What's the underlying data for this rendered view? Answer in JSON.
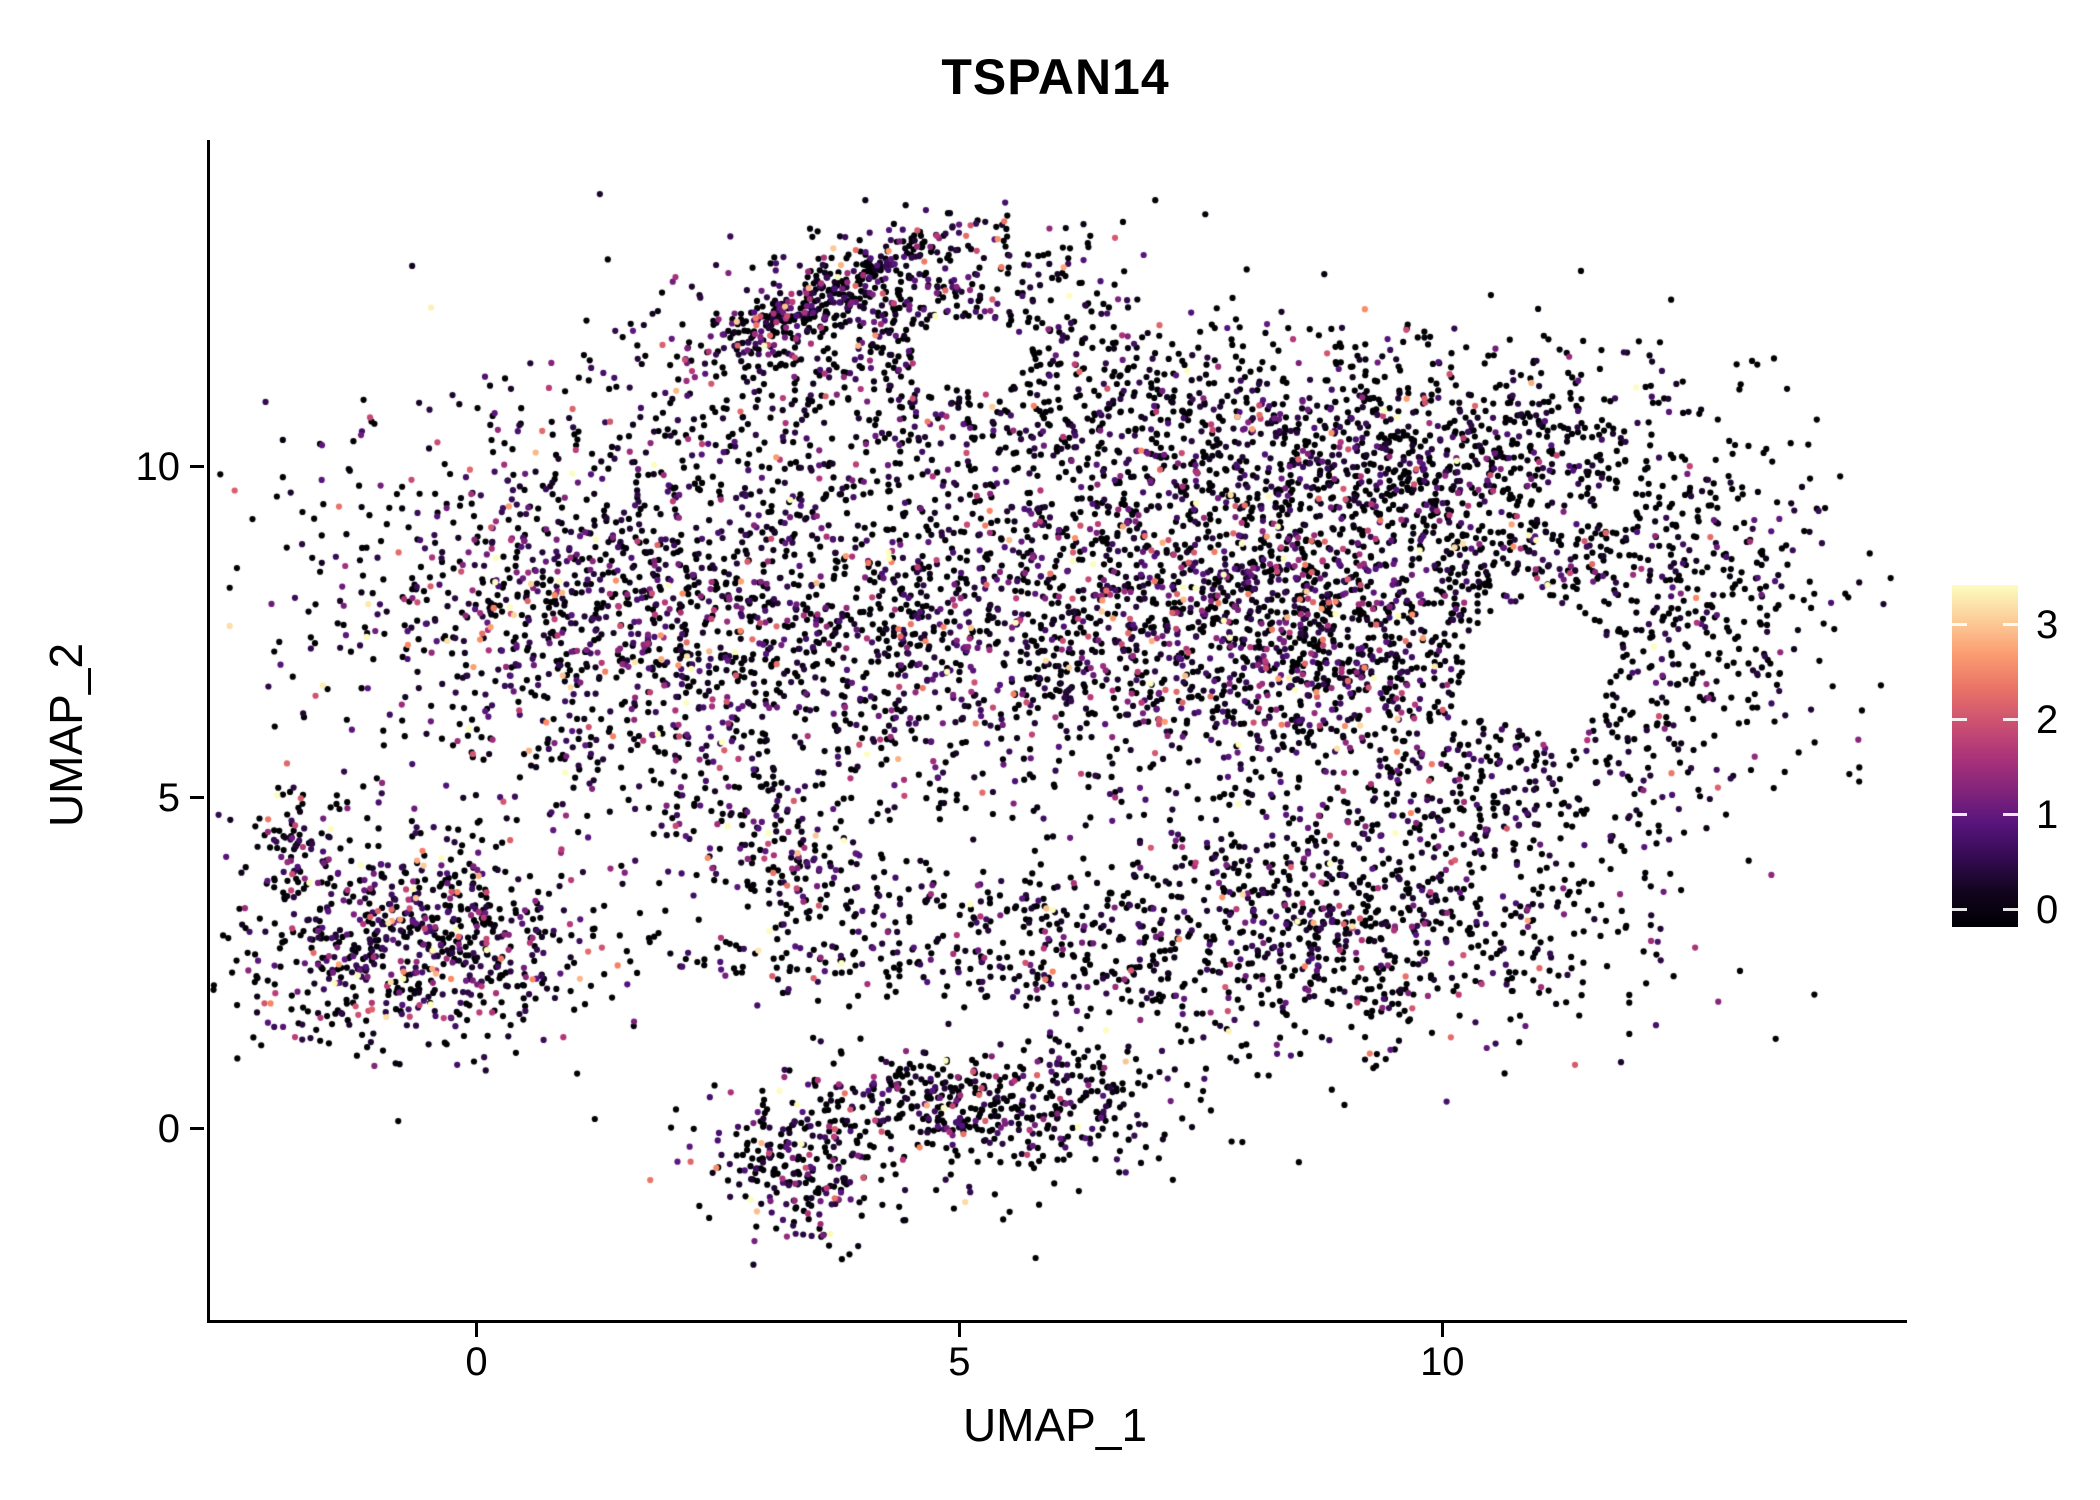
{
  "chart_data": {
    "type": "scatter",
    "title": "TSPAN14",
    "xlabel": "UMAP_1",
    "ylabel": "UMAP_2",
    "xlim": [
      -2.79,
      14.78
    ],
    "ylim": [
      -2.89,
      14.94
    ],
    "xticks": [
      0,
      5,
      10
    ],
    "yticks": [
      0,
      5,
      10
    ],
    "grid": false,
    "legend_position": "right",
    "point_radius_px": 3.1,
    "seed": 11,
    "total_points": 10080,
    "expression_range": [
      0,
      3.4
    ],
    "colorbar": {
      "min": -0.18,
      "max": 3.42,
      "ticks": [
        0,
        1,
        2,
        3
      ],
      "stops": [
        [
          0,
          "#000004"
        ],
        [
          0.25,
          "#51127c"
        ],
        [
          0.5,
          "#b73779"
        ],
        [
          0.75,
          "#fb8861"
        ],
        [
          1,
          "#fcfdbf"
        ]
      ]
    },
    "clusters": [
      {
        "name": "top-arm-edge",
        "cx": 3.55,
        "cy": 12.55,
        "sx": 0.85,
        "sy": 0.16,
        "rot": 37,
        "n": 300,
        "p0": 0.45,
        "emean": 0.8
      },
      {
        "name": "top-arm-fill",
        "cx": 4.5,
        "cy": 12.3,
        "sx": 1.25,
        "sy": 0.65,
        "rot": 10,
        "n": 550,
        "p0": 0.52,
        "emean": 0.7
      },
      {
        "name": "upper-band",
        "cx": 6.5,
        "cy": 10.8,
        "sx": 2.2,
        "sy": 0.75,
        "rot": 0,
        "n": 600,
        "p0": 0.55,
        "emean": 0.7
      },
      {
        "name": "upper-right",
        "cx": 9.5,
        "cy": 10.3,
        "sx": 1.4,
        "sy": 0.9,
        "rot": 0,
        "n": 500,
        "p0": 0.55,
        "emean": 0.7
      },
      {
        "name": "left-mass",
        "cx": 1.3,
        "cy": 7.9,
        "sx": 1.45,
        "sy": 1.55,
        "rot": 0,
        "n": 1300,
        "p0": 0.42,
        "emean": 0.85
      },
      {
        "name": "mid-mass",
        "cx": 4.8,
        "cy": 7.7,
        "sx": 1.7,
        "sy": 1.5,
        "rot": 0,
        "n": 1100,
        "p0": 0.5,
        "emean": 0.75
      },
      {
        "name": "right-dense",
        "cx": 8.2,
        "cy": 7.9,
        "sx": 1.5,
        "sy": 1.3,
        "rot": 0,
        "n": 1500,
        "p0": 0.38,
        "emean": 0.9
      },
      {
        "name": "right-sparse",
        "cx": 10.8,
        "cy": 8.8,
        "sx": 1.3,
        "sy": 1.4,
        "rot": 0,
        "n": 550,
        "p0": 0.68,
        "emean": 0.6
      },
      {
        "name": "far-right",
        "cx": 12.6,
        "cy": 7.8,
        "sx": 0.8,
        "sy": 1.6,
        "rot": 0,
        "n": 300,
        "p0": 0.72,
        "emean": 0.5
      },
      {
        "name": "right-mid-low",
        "cx": 10.3,
        "cy": 5.6,
        "sx": 1.3,
        "sy": 0.9,
        "rot": 0,
        "n": 350,
        "p0": 0.6,
        "emean": 0.6
      },
      {
        "name": "bottom-right-lobe",
        "cx": 8.9,
        "cy": 3.1,
        "sx": 1.6,
        "sy": 1.0,
        "rot": 0,
        "n": 900,
        "p0": 0.55,
        "emean": 0.75
      },
      {
        "name": "mid-strand-lower",
        "cx": 4.7,
        "cy": 2.45,
        "sx": 2.2,
        "sy": 0.22,
        "rot": -3,
        "n": 220,
        "p0": 0.5,
        "emean": 0.8
      },
      {
        "name": "mid-strand-upper",
        "cx": 5.3,
        "cy": 3.3,
        "sx": 1.6,
        "sy": 0.28,
        "rot": -5,
        "n": 160,
        "p0": 0.5,
        "emean": 0.8
      },
      {
        "name": "left-diag-strand",
        "cx": 3.1,
        "cy": 4.3,
        "sx": 0.45,
        "sy": 0.85,
        "rot": 25,
        "n": 180,
        "p0": 0.45,
        "emean": 0.9
      },
      {
        "name": "left-cluster",
        "cx": -0.65,
        "cy": 2.85,
        "sx": 0.95,
        "sy": 0.8,
        "rot": 0,
        "n": 750,
        "p0": 0.4,
        "emean": 0.9
      },
      {
        "name": "left-cluster-tail",
        "cx": -1.95,
        "cy": 4.35,
        "sx": 0.22,
        "sy": 0.45,
        "rot": 0,
        "n": 70,
        "p0": 0.4,
        "emean": 0.9
      },
      {
        "name": "bottom-cluster-west",
        "cx": 3.3,
        "cy": -0.55,
        "sx": 0.45,
        "sy": 0.55,
        "rot": 0,
        "n": 230,
        "p0": 0.5,
        "emean": 0.8
      },
      {
        "name": "bottom-cluster-mid",
        "cx": 4.6,
        "cy": 0.45,
        "sx": 0.55,
        "sy": 0.4,
        "rot": 0,
        "n": 170,
        "p0": 0.5,
        "emean": 0.8
      },
      {
        "name": "bottom-cluster-east",
        "cx": 5.9,
        "cy": 0.35,
        "sx": 0.65,
        "sy": 0.5,
        "rot": 0,
        "n": 230,
        "p0": 0.55,
        "emean": 0.7
      },
      {
        "name": "bottom-cluster-halo",
        "cx": 4.6,
        "cy": -0.1,
        "sx": 1.4,
        "sy": 0.8,
        "rot": 0,
        "n": 120,
        "p0": 0.6,
        "emean": 0.6
      }
    ],
    "holes": [
      {
        "cx": 10.95,
        "cy": 7.0,
        "rx": 0.75,
        "ry": 1.0
      },
      {
        "cx": 5.1,
        "cy": 11.7,
        "rx": 0.6,
        "ry": 0.55
      }
    ]
  }
}
